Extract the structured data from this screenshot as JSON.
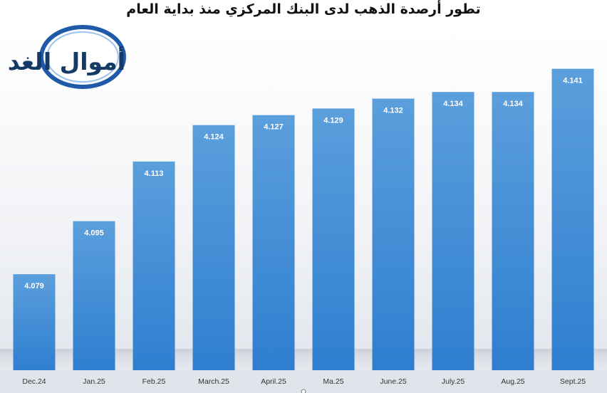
{
  "chart_data": {
    "type": "bar",
    "title": "تطور أرصدة الذهب لدى البنك المركزي منذ بداية العام",
    "categories": [
      "Dec.24",
      "Jan.25",
      "Feb.25",
      "March.25",
      "April.25",
      "Ma.25",
      "June.25",
      "July.25",
      "Aug.25",
      "Sept.25"
    ],
    "values": [
      4.079,
      4.095,
      4.113,
      4.124,
      4.127,
      4.129,
      4.132,
      4.134,
      4.134,
      4.141
    ],
    "value_labels": [
      "4.079",
      "4.095",
      "4.113",
      "4.124",
      "4.127",
      "4.129",
      "4.132",
      "4.134",
      "4.134",
      "4.141"
    ],
    "ylim": [
      4.05,
      4.145
    ],
    "grid": false,
    "legend": "none",
    "colors": {
      "bar_top": "#5b9fdc",
      "bar_bottom": "#2f7ed0",
      "bar_label": "#ffffff",
      "background": "#ffffff"
    }
  },
  "logo": {
    "text": "أموال الغد",
    "colors": {
      "ring": "#1f5aa8",
      "text": "#163a66"
    }
  }
}
